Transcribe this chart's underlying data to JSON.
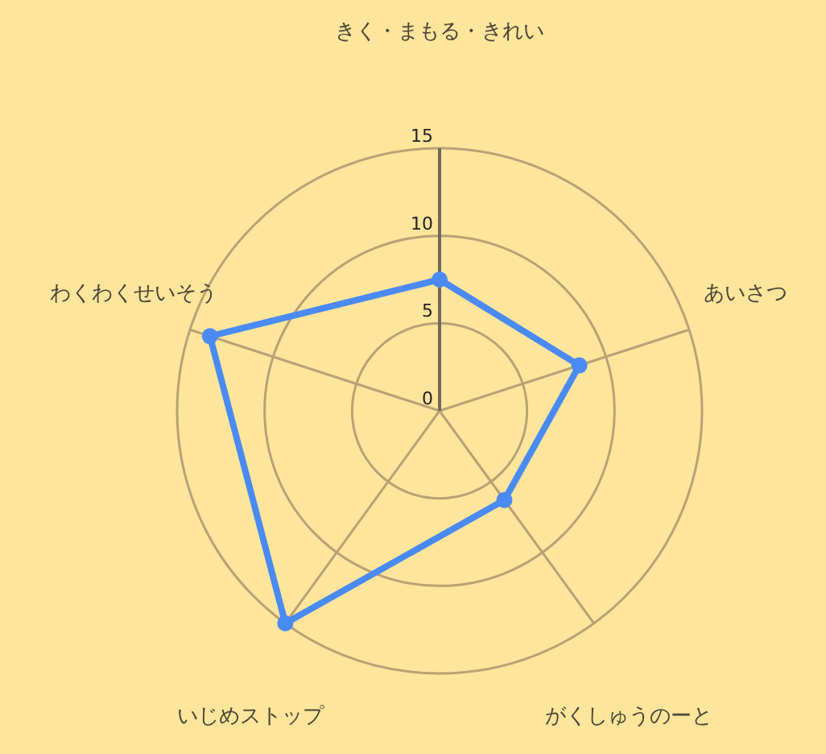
{
  "chart_data": {
    "type": "radar",
    "categories": [
      "きく・まもる・きれい",
      "あいさつ",
      "がくしゅうのーと",
      "いじめストップ",
      "わくわくせいそう"
    ],
    "series": [
      {
        "color": "#4a8af4",
        "values": [
          7.5,
          8.4,
          6.3,
          15,
          13.8
        ]
      }
    ],
    "ylim": [
      0,
      15
    ],
    "yticks": [
      0,
      5,
      10,
      15
    ],
    "grid": true,
    "marker": "circle"
  }
}
